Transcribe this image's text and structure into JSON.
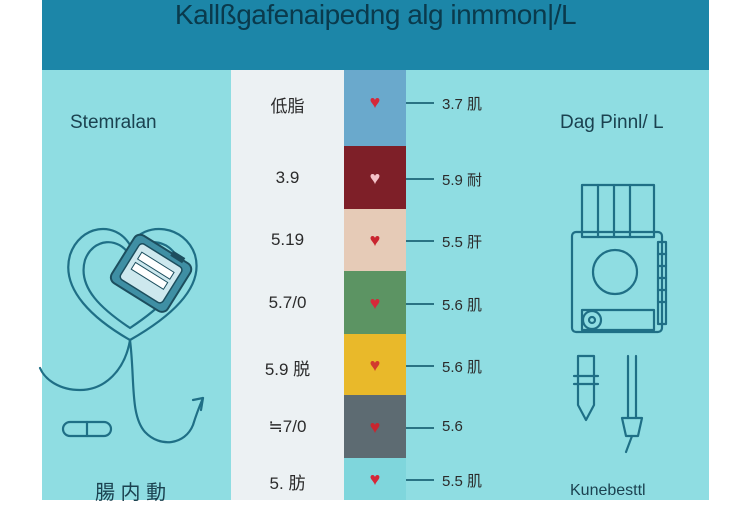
{
  "header": {
    "title": "Kallßgafenaipedng alg inmmon|/L"
  },
  "labels": {
    "left": "Stemralan",
    "right": "Dag Pinnl/ L",
    "bottom_left": "腸 内 動",
    "bottom_right": "Kunebesttl"
  },
  "rows": [
    {
      "left": "低脂",
      "right": "3.7 肌",
      "color": "#6aa9cc",
      "heart_color": "#d62839"
    },
    {
      "left": "3.9",
      "right": "5.9 耐",
      "color": "#7e1f28",
      "heart_color": "#f4c2c8"
    },
    {
      "left": "5.19",
      "right": "5.5 肝",
      "color": "#e6cbb7",
      "heart_color": "#c9252f"
    },
    {
      "left": "5.7/0",
      "right": "5.6 肌",
      "color": "#5c9463",
      "heart_color": "#d62839"
    },
    {
      "left": "5.9 脱",
      "right": "5.6 肌",
      "color": "#e9b92a",
      "heart_color": "#d23a2e"
    },
    {
      "left": "≒7/0",
      "right": "5.6",
      "color": "#5d6b72",
      "heart_color": "#c9252f"
    },
    {
      "left": "5. 肪",
      "right": "5.5 肌",
      "color": "#7fd6dc",
      "heart_color": "#d62839"
    }
  ],
  "icons": {
    "left_illustration": "stethoscope-heart-icon",
    "right_illustration": "glucose-meter-icon",
    "heart": "heart-icon"
  },
  "colors": {
    "header": "#1c86a8",
    "panel": "#8fdde2",
    "line": "#2a7384"
  }
}
